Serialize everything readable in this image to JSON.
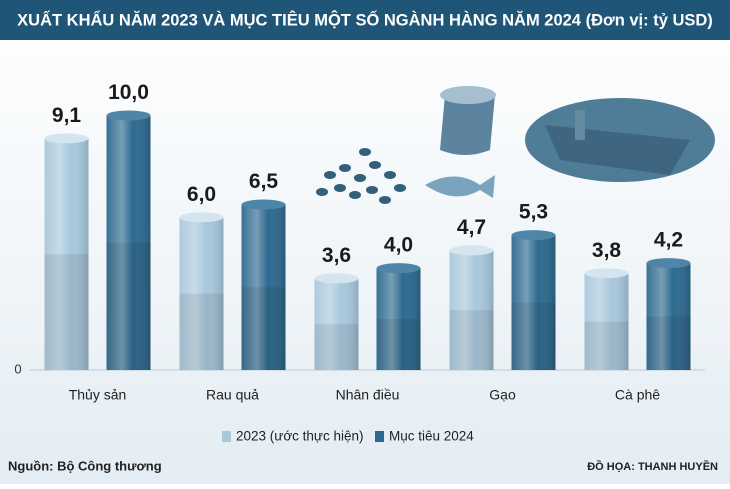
{
  "chart_data": {
    "type": "bar",
    "title": "XUẤT KHẨU NĂM 2023 VÀ MỤC TIÊU MỘT SỐ NGÀNH HÀNG NĂM 2024 (Đơn vị: tỷ USD)",
    "categories": [
      "Thủy sản",
      "Rau quả",
      "Nhân điều",
      "Gạo",
      "Cà phê"
    ],
    "series": [
      {
        "name": "2023 (ước thực hiện)",
        "color": "#a8c8dc",
        "values": [
          9.1,
          6.0,
          3.6,
          4.7,
          3.8
        ],
        "value_labels": [
          "9,1",
          "6,0",
          "3,6",
          "4,7",
          "3,8"
        ]
      },
      {
        "name": "Mục tiêu 2024",
        "color": "#2e6a8f",
        "values": [
          10.0,
          6.5,
          4.0,
          5.3,
          4.2
        ],
        "value_labels": [
          "10,0",
          "6,5",
          "4,0",
          "5,3",
          "4,2"
        ]
      }
    ],
    "ylim": [
      0,
      11
    ],
    "yticks": [
      0
    ],
    "grid": false,
    "legend": "bottom",
    "source": "Nguồn: Bộ Công thương",
    "credit": "ĐỒ HỌA: THANH HUYỀN"
  }
}
